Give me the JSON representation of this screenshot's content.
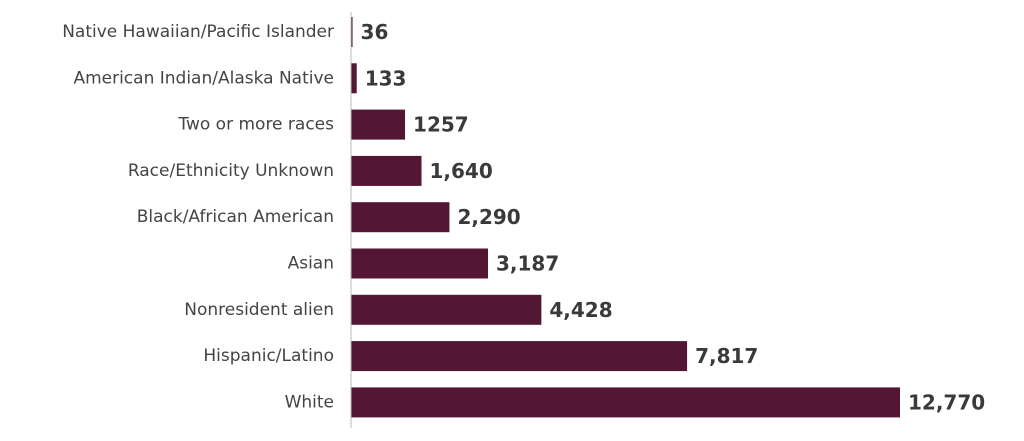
{
  "colors": {
    "bar": "#531735",
    "label_text": "#444444",
    "value_text": "#3a3a3a",
    "axis": "#bbbbbb"
  },
  "chart_data": {
    "type": "bar",
    "orientation": "horizontal",
    "title": "",
    "xlabel": "",
    "ylabel": "",
    "grid": false,
    "legend": "none",
    "xlim": [
      0,
      12770
    ],
    "categories": [
      "Native Hawaiian/Pacific Islander",
      "American Indian/Alaska Native",
      "Two or more races",
      "Race/Ethnicity Unknown",
      "Black/African  American",
      "Asian",
      "Nonresident alien",
      "Hispanic/Latino",
      "White"
    ],
    "values": [
      36,
      133,
      1257,
      1640,
      2290,
      3187,
      4428,
      7817,
      12770
    ],
    "value_labels": [
      "36",
      "133",
      "1257",
      "1,640",
      "2,290",
      "3,187",
      "4,428",
      "7,817",
      "12,770"
    ]
  }
}
